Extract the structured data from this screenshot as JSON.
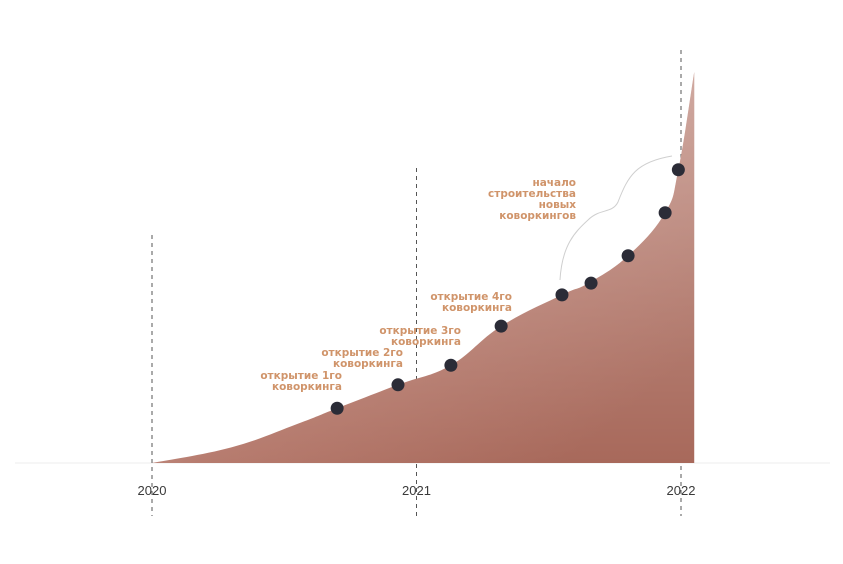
{
  "chart_data": {
    "type": "area",
    "title": "",
    "xlabel": "",
    "ylabel": "",
    "x_ticks": [
      "2020",
      "2021",
      "2022"
    ],
    "x_range": [
      2019.5,
      2022.55
    ],
    "colors": {
      "area_light": "#e3c7c0",
      "area_dark": "#a8695b",
      "marker": "#2b2c37",
      "annotation": "#d0946a",
      "guide": "#555555"
    },
    "curve": [
      {
        "x": 2020.0,
        "y": 0
      },
      {
        "x": 2020.3,
        "y": 4
      },
      {
        "x": 2020.55,
        "y": 10
      },
      {
        "x": 2020.7,
        "y": 14
      },
      {
        "x": 2020.93,
        "y": 20
      },
      {
        "x": 2021.13,
        "y": 25
      },
      {
        "x": 2021.32,
        "y": 35
      },
      {
        "x": 2021.55,
        "y": 43
      },
      {
        "x": 2021.65,
        "y": 46
      },
      {
        "x": 2021.8,
        "y": 53
      },
      {
        "x": 2021.94,
        "y": 64
      },
      {
        "x": 2021.99,
        "y": 75
      },
      {
        "x": 2022.05,
        "y": 100
      }
    ],
    "points": [
      {
        "x": 2020.7,
        "y": 14
      },
      {
        "x": 2020.93,
        "y": 20
      },
      {
        "x": 2021.13,
        "y": 25
      },
      {
        "x": 2021.32,
        "y": 35
      },
      {
        "x": 2021.55,
        "y": 43
      },
      {
        "x": 2021.66,
        "y": 46
      },
      {
        "x": 2021.8,
        "y": 53
      },
      {
        "x": 2021.94,
        "y": 64
      },
      {
        "x": 2021.99,
        "y": 75
      }
    ],
    "annotations": [
      {
        "lines": [
          "открытие 1го",
          "коворкинга"
        ]
      },
      {
        "lines": [
          "открытие 2го",
          "коворкинга"
        ]
      },
      {
        "lines": [
          "открытие 3го",
          "коворкинга"
        ]
      },
      {
        "lines": [
          "открытие 4го",
          "коворкинга"
        ]
      },
      {
        "lines": [
          "начало",
          "строительства",
          "новых",
          "коворкингов"
        ]
      }
    ]
  }
}
